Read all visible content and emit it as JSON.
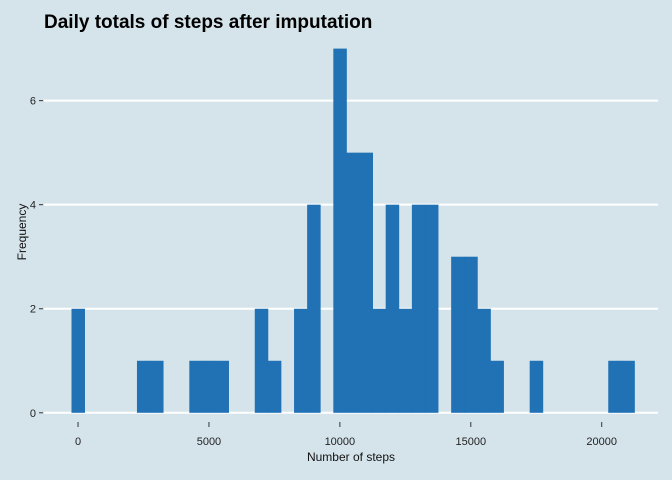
{
  "chart_data": {
    "type": "bar",
    "title": "Daily totals of steps after imputation",
    "xlabel": "Number of steps",
    "ylabel": "Frequency",
    "bin_width": 500,
    "bins": [
      {
        "start": -250,
        "count": 2
      },
      {
        "start": 2250,
        "count": 1
      },
      {
        "start": 2750,
        "count": 1
      },
      {
        "start": 4250,
        "count": 1
      },
      {
        "start": 4750,
        "count": 1
      },
      {
        "start": 5250,
        "count": 1
      },
      {
        "start": 6750,
        "count": 2
      },
      {
        "start": 7250,
        "count": 1
      },
      {
        "start": 8250,
        "count": 2
      },
      {
        "start": 8750,
        "count": 4
      },
      {
        "start": 9750,
        "count": 7
      },
      {
        "start": 10250,
        "count": 5
      },
      {
        "start": 10750,
        "count": 5
      },
      {
        "start": 11250,
        "count": 2
      },
      {
        "start": 11750,
        "count": 4
      },
      {
        "start": 12250,
        "count": 2
      },
      {
        "start": 12750,
        "count": 4
      },
      {
        "start": 13250,
        "count": 4
      },
      {
        "start": 14250,
        "count": 3
      },
      {
        "start": 14750,
        "count": 3
      },
      {
        "start": 15250,
        "count": 2
      },
      {
        "start": 15750,
        "count": 1
      },
      {
        "start": 17250,
        "count": 1
      },
      {
        "start": 20250,
        "count": 1
      },
      {
        "start": 20750,
        "count": 1
      }
    ],
    "xlim": [
      -1300,
      22150
    ],
    "ylim": [
      -0.1,
      7.05
    ],
    "x_ticks": [
      0,
      5000,
      10000,
      15000,
      20000
    ],
    "x_tick_labels": [
      "0",
      "5000",
      "10000",
      "15000",
      "20000"
    ],
    "y_ticks": [
      0,
      2,
      4,
      6
    ],
    "y_tick_labels": [
      "0",
      "2",
      "4",
      "6"
    ],
    "grid": "horizontal",
    "colors": {
      "bar": "#2171b5",
      "background": "#d5e4eb",
      "grid": "#ffffff"
    }
  }
}
